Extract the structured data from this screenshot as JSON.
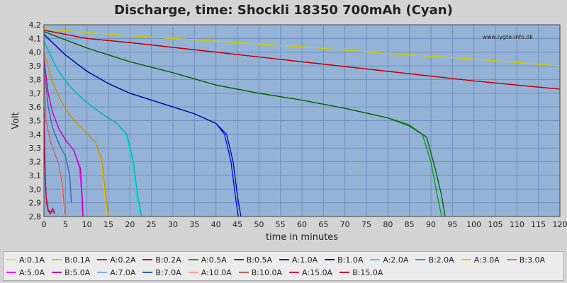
{
  "chart_data": {
    "type": "line",
    "title": "Discharge, time: Shockli 18350 700mAh (Cyan)",
    "xlabel": "time in minutes",
    "ylabel": "Volt",
    "watermark": "www.lygte-info.dk",
    "xlim": [
      0,
      120
    ],
    "ylim": [
      2.8,
      4.2
    ],
    "x_ticks": [
      0,
      5,
      10,
      15,
      20,
      25,
      30,
      35,
      40,
      45,
      50,
      55,
      60,
      65,
      70,
      75,
      80,
      85,
      90,
      95,
      100,
      105,
      110,
      115,
      120
    ],
    "y_ticks": [
      "2,8",
      "2,9",
      "3,0",
      "3,1",
      "3,2",
      "3,3",
      "3,4",
      "3,5",
      "3,6",
      "3,7",
      "3,8",
      "3,9",
      "4,0",
      "4,1",
      "4,2"
    ],
    "grid": true,
    "plot_background": "#95b3d7",
    "series": [
      {
        "name": "A:0.1A",
        "color": "#e8e800",
        "x": [
          0,
          20,
          40,
          60,
          80,
          100,
          120
        ],
        "y": [
          4.17,
          4.12,
          4.08,
          4.04,
          3.99,
          3.95,
          3.9
        ]
      },
      {
        "name": "B:0.1A",
        "color": "#c8c800",
        "x": [
          0,
          20,
          40,
          60,
          80,
          100,
          120
        ],
        "y": [
          4.17,
          4.12,
          4.08,
          4.04,
          3.99,
          3.95,
          3.9
        ]
      },
      {
        "name": "A:0.2A",
        "color": "#e00000",
        "x": [
          0,
          10,
          20,
          40,
          60,
          80,
          100,
          120
        ],
        "y": [
          4.16,
          4.1,
          4.07,
          4.0,
          3.93,
          3.86,
          3.79,
          3.73
        ]
      },
      {
        "name": "B:0.2A",
        "color": "#c00000",
        "x": [
          0,
          10,
          20,
          40,
          60,
          80,
          100,
          120
        ],
        "y": [
          4.16,
          4.1,
          4.07,
          4.0,
          3.93,
          3.86,
          3.79,
          3.73
        ]
      },
      {
        "name": "A:0.5A",
        "color": "#00a000",
        "x": [
          0,
          10,
          20,
          30,
          40,
          50,
          60,
          70,
          80,
          85,
          88,
          90,
          91.5,
          92.5
        ],
        "y": [
          4.15,
          4.03,
          3.93,
          3.85,
          3.76,
          3.7,
          3.65,
          3.59,
          3.52,
          3.47,
          3.4,
          3.2,
          2.95,
          2.8
        ]
      },
      {
        "name": "B:0.5A",
        "color": "#006000",
        "x": [
          0,
          10,
          20,
          30,
          40,
          50,
          60,
          70,
          80,
          85,
          89,
          91,
          92.5,
          93.3
        ],
        "y": [
          4.15,
          4.03,
          3.93,
          3.85,
          3.76,
          3.7,
          3.65,
          3.59,
          3.52,
          3.46,
          3.38,
          3.15,
          2.95,
          2.8
        ]
      },
      {
        "name": "A:1.0A",
        "color": "#0000ff",
        "x": [
          0,
          5,
          10,
          15,
          20,
          25,
          30,
          35,
          40,
          42,
          43.5,
          44.5,
          45.2
        ],
        "y": [
          4.13,
          3.98,
          3.86,
          3.77,
          3.7,
          3.65,
          3.6,
          3.55,
          3.48,
          3.4,
          3.2,
          2.95,
          2.8
        ]
      },
      {
        "name": "B:1.0A",
        "color": "#0000a0",
        "x": [
          0,
          5,
          10,
          15,
          20,
          25,
          30,
          35,
          40,
          42.5,
          44,
          45,
          45.8
        ],
        "y": [
          4.13,
          3.98,
          3.86,
          3.77,
          3.7,
          3.65,
          3.6,
          3.55,
          3.48,
          3.4,
          3.2,
          2.95,
          2.8
        ]
      },
      {
        "name": "A:2.0A",
        "color": "#00e8e8",
        "x": [
          0,
          3,
          6,
          10,
          14,
          17,
          19,
          20.5,
          21.5,
          22.3
        ],
        "y": [
          4.08,
          3.88,
          3.75,
          3.63,
          3.54,
          3.48,
          3.4,
          3.2,
          2.95,
          2.8
        ]
      },
      {
        "name": "B:2.0A",
        "color": "#00b0b0",
        "x": [
          0,
          3,
          6,
          10,
          14,
          17,
          19.3,
          20.8,
          21.8,
          22.7
        ],
        "y": [
          4.08,
          3.88,
          3.75,
          3.63,
          3.54,
          3.48,
          3.4,
          3.2,
          2.95,
          2.8
        ]
      },
      {
        "name": "A:3.0A",
        "color": "#f0c000",
        "x": [
          0,
          2,
          4,
          6,
          9,
          12,
          13.3,
          14.2,
          14.8
        ],
        "y": [
          4.0,
          3.78,
          3.64,
          3.54,
          3.44,
          3.34,
          3.2,
          2.95,
          2.8
        ]
      },
      {
        "name": "B:3.0A",
        "color": "#c09000",
        "x": [
          0,
          2,
          4,
          6,
          9,
          12,
          13.5,
          14.4,
          15.0
        ],
        "y": [
          4.0,
          3.78,
          3.64,
          3.54,
          3.44,
          3.34,
          3.2,
          2.95,
          2.8
        ]
      },
      {
        "name": "A:5.0A",
        "color": "#ff00ff",
        "x": [
          0,
          1,
          2,
          3.5,
          5,
          7,
          8.3,
          8.8,
          9.0
        ],
        "y": [
          3.95,
          3.7,
          3.56,
          3.44,
          3.36,
          3.28,
          3.15,
          2.95,
          2.8
        ]
      },
      {
        "name": "B:5.0A",
        "color": "#c000c0",
        "x": [
          0,
          1,
          2,
          3.5,
          5,
          7,
          8.5,
          8.9,
          9.1
        ],
        "y": [
          3.95,
          3.7,
          3.56,
          3.44,
          3.36,
          3.28,
          3.15,
          2.95,
          2.8
        ]
      },
      {
        "name": "A:7.0A",
        "color": "#7fa8ff",
        "x": [
          0,
          1,
          2,
          3.5,
          5,
          5.8,
          6.2
        ],
        "y": [
          3.9,
          3.6,
          3.45,
          3.33,
          3.24,
          3.1,
          2.9
        ]
      },
      {
        "name": "B:7.0A",
        "color": "#4060a0",
        "x": [
          0,
          1,
          2,
          3.5,
          5,
          6.0,
          6.4
        ],
        "y": [
          3.9,
          3.6,
          3.45,
          3.33,
          3.24,
          3.1,
          2.9
        ]
      },
      {
        "name": "A:10.0A",
        "color": "#ffa0a0",
        "x": [
          0,
          0.5,
          1.5,
          2.5,
          3.5,
          4.2,
          4.6
        ],
        "y": [
          3.85,
          3.5,
          3.35,
          3.26,
          3.18,
          3.0,
          2.82
        ]
      },
      {
        "name": "B:10.0A",
        "color": "#c06060",
        "x": [
          0,
          0.5,
          1.5,
          2.5,
          3.5,
          4.4,
          4.8
        ],
        "y": [
          3.85,
          3.5,
          3.35,
          3.26,
          3.18,
          3.0,
          2.82
        ]
      },
      {
        "name": "A:15.0A",
        "color": "#e00060",
        "x": [
          0,
          0.2,
          0.5,
          1.0,
          1.5,
          2.0,
          2.5
        ],
        "y": [
          3.6,
          3.2,
          2.95,
          2.85,
          2.83,
          2.84,
          2.82
        ]
      },
      {
        "name": "B:15.0A",
        "color": "#c00040",
        "x": [
          0,
          0.3,
          0.6,
          1.0,
          1.5,
          2.0,
          2.5
        ],
        "y": [
          3.55,
          3.1,
          2.9,
          2.84,
          2.82,
          2.86,
          2.83
        ]
      }
    ]
  }
}
